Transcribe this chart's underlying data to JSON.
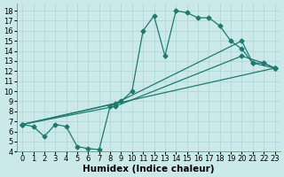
{
  "xlabel": "Humidex (Indice chaleur)",
  "xlim": [
    -0.5,
    23.5
  ],
  "ylim": [
    4,
    18.7
  ],
  "xticks": [
    0,
    1,
    2,
    3,
    4,
    5,
    6,
    7,
    8,
    9,
    10,
    11,
    12,
    13,
    14,
    15,
    16,
    17,
    18,
    19,
    20,
    21,
    22,
    23
  ],
  "yticks": [
    4,
    5,
    6,
    7,
    8,
    9,
    10,
    11,
    12,
    13,
    14,
    15,
    16,
    17,
    18
  ],
  "bg_color": "#cce9ea",
  "grid_color": "#b0d8da",
  "line_color": "#1e7a6e",
  "lines": [
    {
      "x": [
        0,
        1,
        2,
        3,
        4,
        5,
        6,
        7,
        8,
        9,
        10,
        11,
        12,
        13,
        14,
        15,
        16,
        17,
        18,
        19,
        20,
        21,
        22,
        23
      ],
      "y": [
        6.7,
        6.5,
        5.5,
        6.7,
        6.5,
        4.5,
        4.3,
        4.2,
        8.5,
        9.0,
        10.0,
        16.0,
        17.5,
        13.5,
        18.0,
        17.8,
        17.3,
        17.3,
        16.5,
        15.0,
        14.2,
        12.8,
        12.8,
        12.3
      ]
    },
    {
      "x": [
        0,
        23
      ],
      "y": [
        6.7,
        12.3
      ]
    },
    {
      "x": [
        0,
        8.5,
        20,
        22,
        23
      ],
      "y": [
        6.7,
        8.5,
        13.5,
        12.8,
        12.3
      ]
    },
    {
      "x": [
        0,
        8.5,
        20,
        21,
        23
      ],
      "y": [
        6.7,
        8.8,
        15.0,
        12.8,
        12.3
      ]
    }
  ],
  "tick_fontsize": 6,
  "label_fontsize": 7.5,
  "markersize": 2.5
}
